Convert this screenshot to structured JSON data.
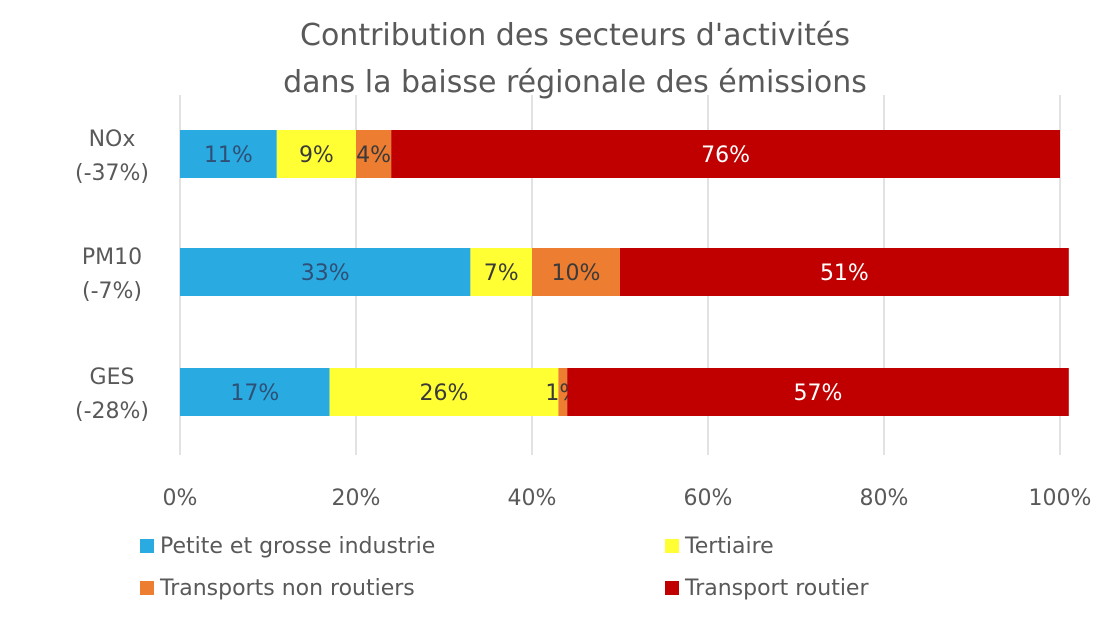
{
  "chart_data": {
    "type": "bar",
    "orientation": "horizontal",
    "stacked": true,
    "title_lines": [
      "Contribution des secteurs d'activités",
      "dans la baisse régionale des émissions"
    ],
    "xlabel": "",
    "ylabel": "",
    "xlim": [
      0,
      100
    ],
    "x_ticks": [
      "0%",
      "20%",
      "40%",
      "60%",
      "80%",
      "100%"
    ],
    "x_tick_values": [
      0,
      20,
      40,
      60,
      80,
      100
    ],
    "grid": true,
    "legend_position": "bottom",
    "categories": [
      {
        "lines": [
          "NOx",
          "(-37%)"
        ]
      },
      {
        "lines": [
          "PM10",
          "(-7%)"
        ]
      },
      {
        "lines": [
          "GES",
          "(-28%)"
        ]
      }
    ],
    "series": [
      {
        "name": "Petite et grosse industrie",
        "color": "#29ABE2",
        "label_color": "#2F4F75",
        "values": [
          11,
          33,
          17
        ],
        "labels": [
          "11%",
          "33%",
          "17%"
        ]
      },
      {
        "name": "Tertiaire",
        "color": "#FFFF33",
        "label_color": "#3A3A3A",
        "values": [
          9,
          7,
          26
        ],
        "labels": [
          "9%",
          "7%",
          "26%"
        ]
      },
      {
        "name": "Transports non routiers",
        "color": "#ED7D31",
        "label_color": "#3A3A3A",
        "values": [
          4,
          10,
          1
        ],
        "labels": [
          "4%",
          "10%",
          "1%"
        ]
      },
      {
        "name": "Transport routier",
        "color": "#C00000",
        "label_color": "#FFFFFF",
        "values": [
          76,
          51,
          57
        ],
        "labels": [
          "76%",
          "51%",
          "57%"
        ]
      }
    ]
  }
}
